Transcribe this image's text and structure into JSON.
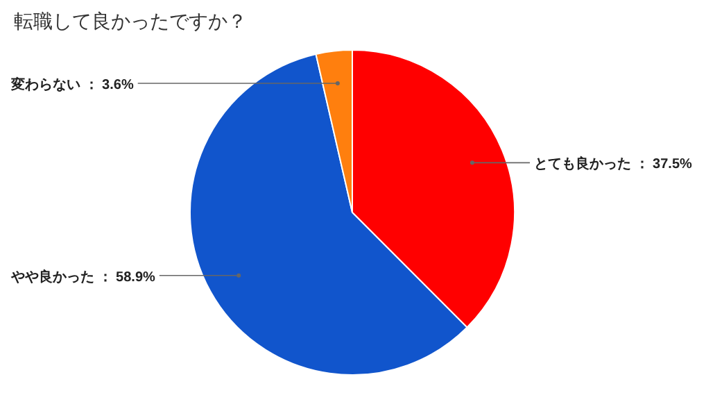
{
  "chart_data": {
    "type": "pie",
    "title": "転職して良かったですか？",
    "categories": [
      "とても良かった",
      "やや良かった",
      "変わらない"
    ],
    "values": [
      37.5,
      58.9,
      3.6
    ],
    "value_labels": [
      "37.5%",
      "58.9%",
      "3.6%"
    ],
    "colors": [
      "#ff0000",
      "#1155cc",
      "#ff7f0e"
    ]
  }
}
